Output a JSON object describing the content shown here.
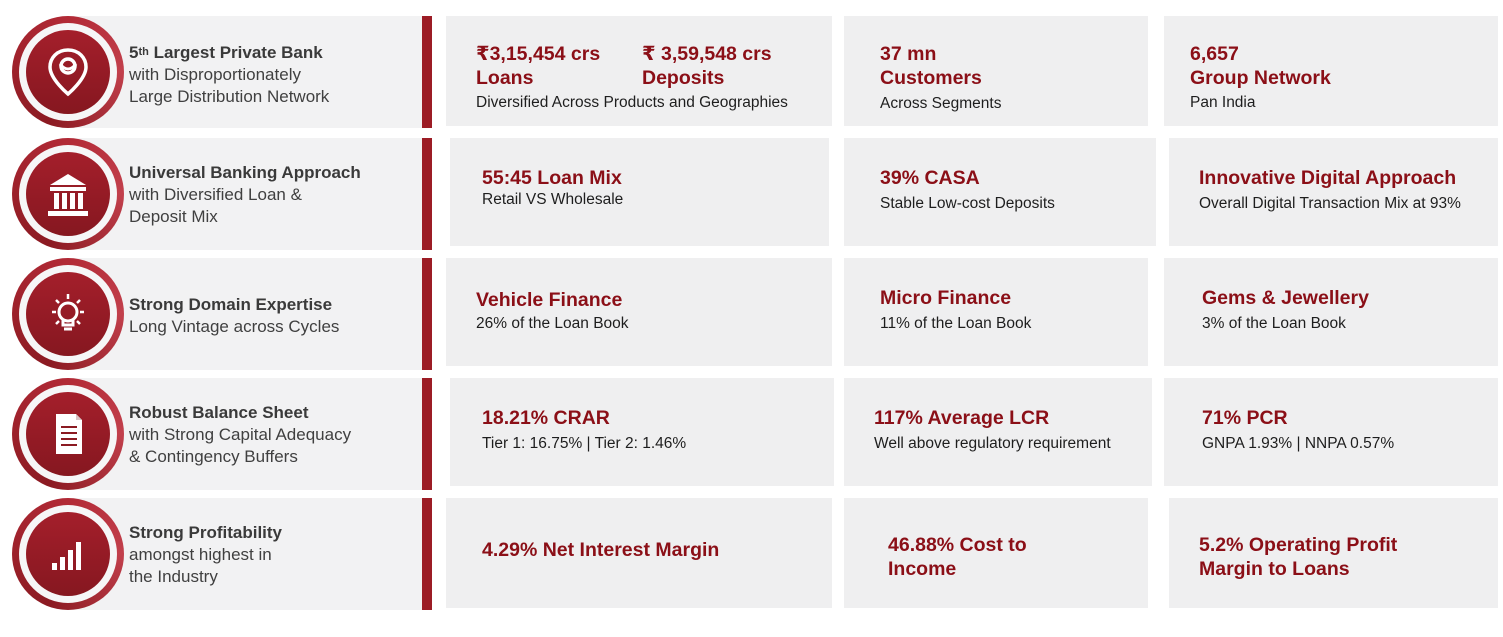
{
  "rows": [
    {
      "icon": "location-pin-icon",
      "left": {
        "title_pre": "5",
        "title_sup": "th",
        "title_post": " Largest Private Bank",
        "sub": "with Disproportionately\nLarge Distribution Network"
      },
      "cards": [
        {
          "loans_value": "₹3,15,454 crs",
          "loans_label": "Loans",
          "deposits_value": "₹ 3,59,548 crs",
          "deposits_label": "Deposits",
          "sub": "Diversified Across Products and Geographies"
        },
        {
          "title": "37 mn\nCustomers",
          "sub": "Across Segments"
        },
        {
          "title": "6,657\nGroup Network",
          "sub": "Pan India"
        }
      ]
    },
    {
      "icon": "bank-building-icon",
      "left": {
        "title": "Universal Banking Approach",
        "sub": "with Diversified Loan &\nDeposit Mix"
      },
      "cards": [
        {
          "title": "55:45 Loan Mix",
          "sub": "Retail VS Wholesale"
        },
        {
          "title": "39% CASA",
          "sub": "Stable Low-cost Deposits"
        },
        {
          "title": "Innovative Digital Approach",
          "sub": "Overall Digital Transaction Mix at 93%"
        }
      ]
    },
    {
      "icon": "lightbulb-icon",
      "left": {
        "title": "Strong Domain Expertise",
        "sub": "Long Vintage across Cycles"
      },
      "cards": [
        {
          "title": "Vehicle Finance",
          "sub": "26% of the Loan Book"
        },
        {
          "title": "Micro Finance",
          "sub": "11% of the Loan Book"
        },
        {
          "title": "Gems & Jewellery",
          "sub": "3% of the Loan Book"
        }
      ]
    },
    {
      "icon": "document-icon",
      "left": {
        "title": "Robust Balance Sheet",
        "sub": "with Strong Capital Adequacy\n& Contingency Buffers"
      },
      "cards": [
        {
          "title": "18.21% CRAR",
          "sub": "Tier 1: 16.75% | Tier 2: 1.46%"
        },
        {
          "title": "117% Average LCR",
          "sub": "Well above regulatory requirement"
        },
        {
          "title": "71% PCR",
          "sub": "GNPA 1.93% | NNPA 0.57%"
        }
      ]
    },
    {
      "icon": "bar-chart-icon",
      "left": {
        "title": "Strong Profitability",
        "sub": "amongst highest in\nthe Industry"
      },
      "cards": [
        {
          "title": "4.29% Net Interest Margin"
        },
        {
          "title": "46.88% Cost to\nIncome"
        },
        {
          "title": "5.2% Operating Profit\nMargin to Loans"
        }
      ]
    }
  ],
  "colors": {
    "accent": "#8b0f17",
    "ring": "#a41f2b",
    "divider": "#9c1c25",
    "card_bg": "#efeff0",
    "panel_bg": "#f2f2f3"
  }
}
